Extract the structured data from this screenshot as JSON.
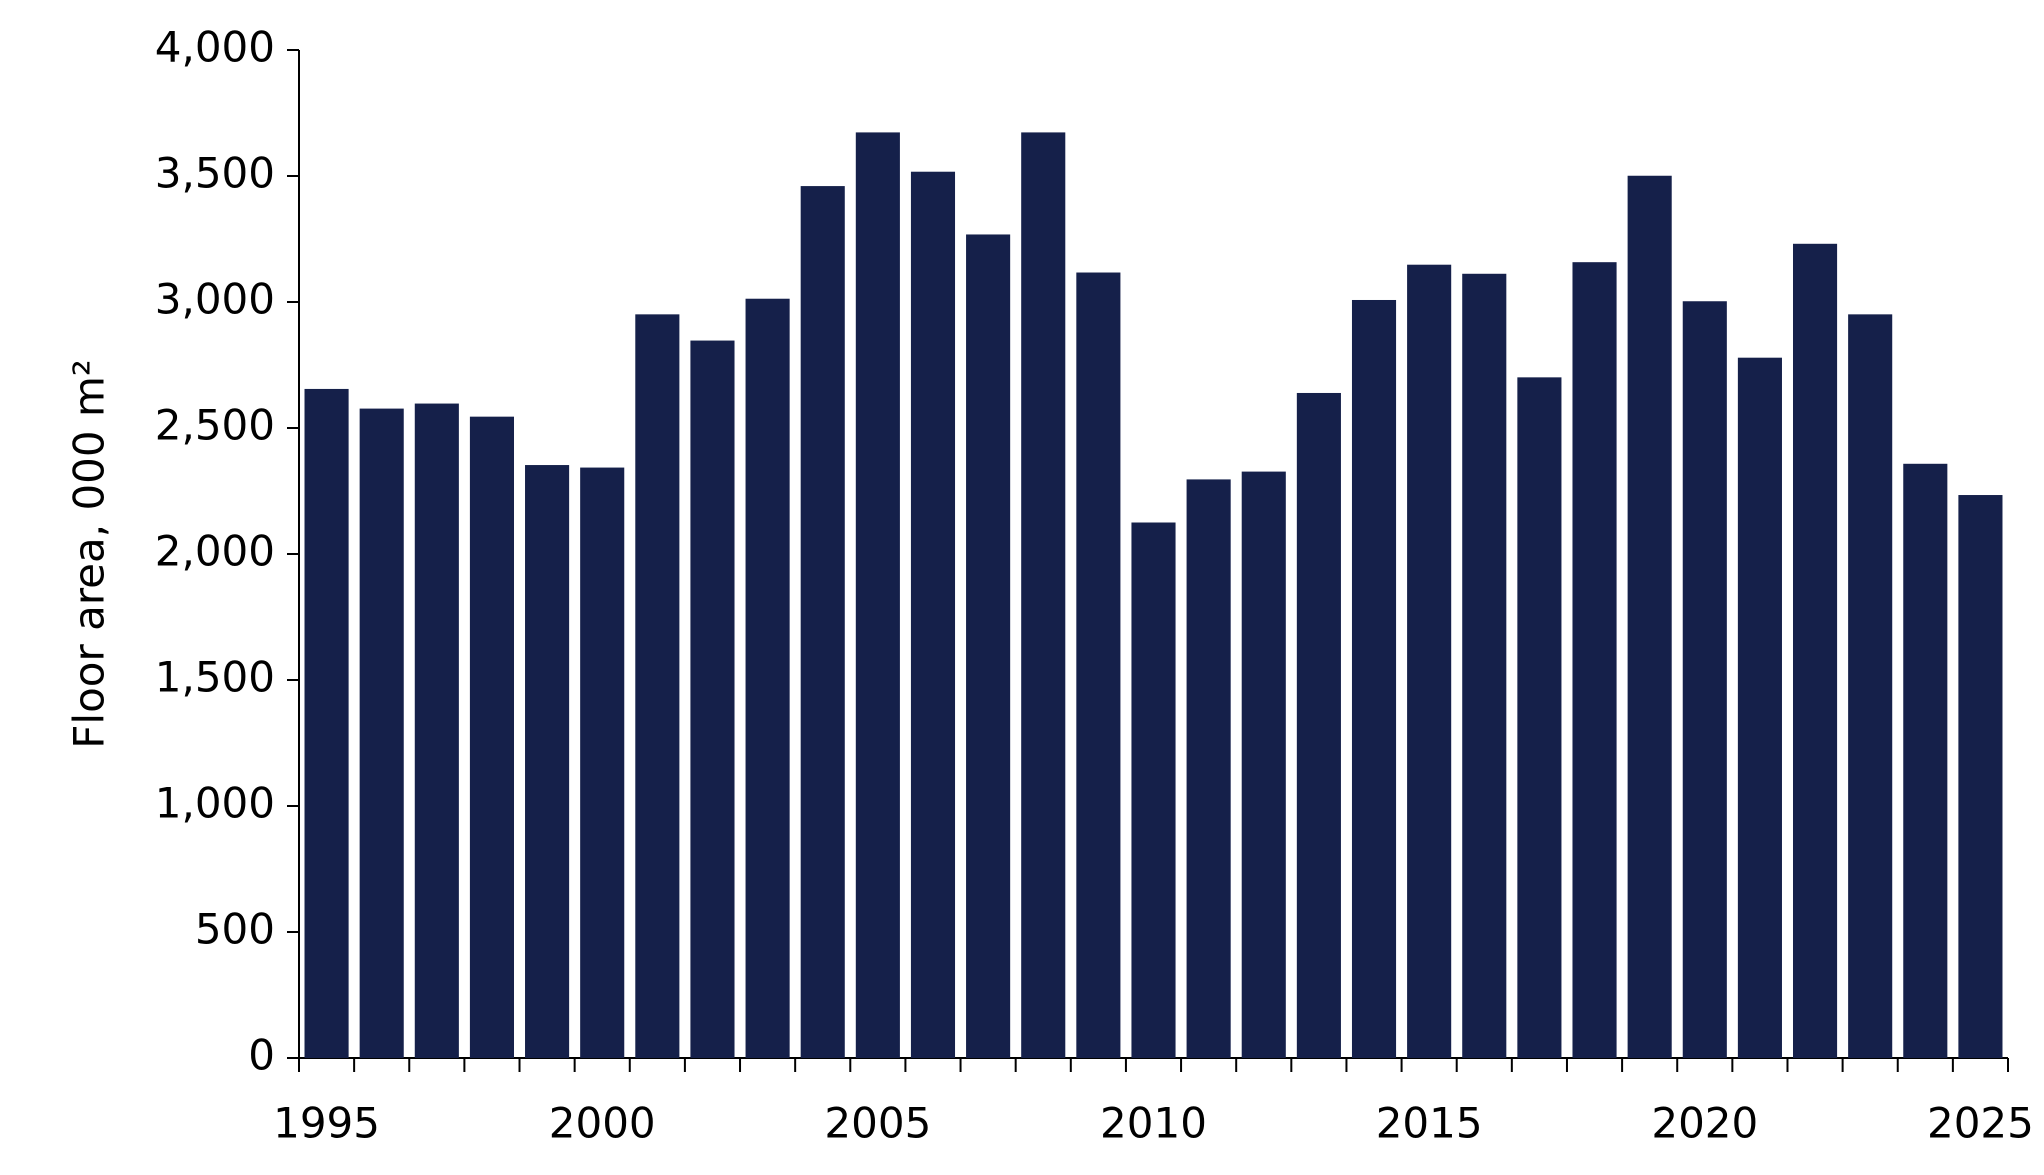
{
  "chart_data": {
    "type": "bar",
    "y_label": "Floor area, 000 m²",
    "categories": [
      "1995",
      null,
      null,
      null,
      null,
      "2000",
      null,
      null,
      null,
      null,
      "2005",
      null,
      null,
      null,
      null,
      "2010",
      null,
      null,
      null,
      null,
      "2015",
      null,
      null,
      null,
      null,
      "2020",
      null,
      null,
      null,
      null,
      "2025"
    ],
    "values": [
      2655,
      2577,
      2597,
      2545,
      2353,
      2343,
      2951,
      2847,
      3013,
      3460,
      3673,
      3517,
      3268,
      3673,
      3117,
      2125,
      2296,
      2327,
      2639,
      3008,
      3148,
      3112,
      2701,
      3158,
      3501,
      3003,
      2779,
      3231,
      2951,
      2358,
      2234
    ],
    "color": "#15204a",
    "ylim": [
      0,
      4000
    ],
    "yticks": [
      0,
      500,
      {
        "value": 1000,
        "label": "1,000"
      },
      {
        "value": 1500,
        "label": "1,500"
      },
      {
        "value": 2000,
        "label": "2,000"
      },
      {
        "value": 2500,
        "label": "2,500"
      },
      {
        "value": 3000,
        "label": "3,000"
      },
      {
        "value": 3500,
        "label": "3,500"
      },
      {
        "value": 4000,
        "label": "4,000"
      }
    ],
    "grid": false
  }
}
